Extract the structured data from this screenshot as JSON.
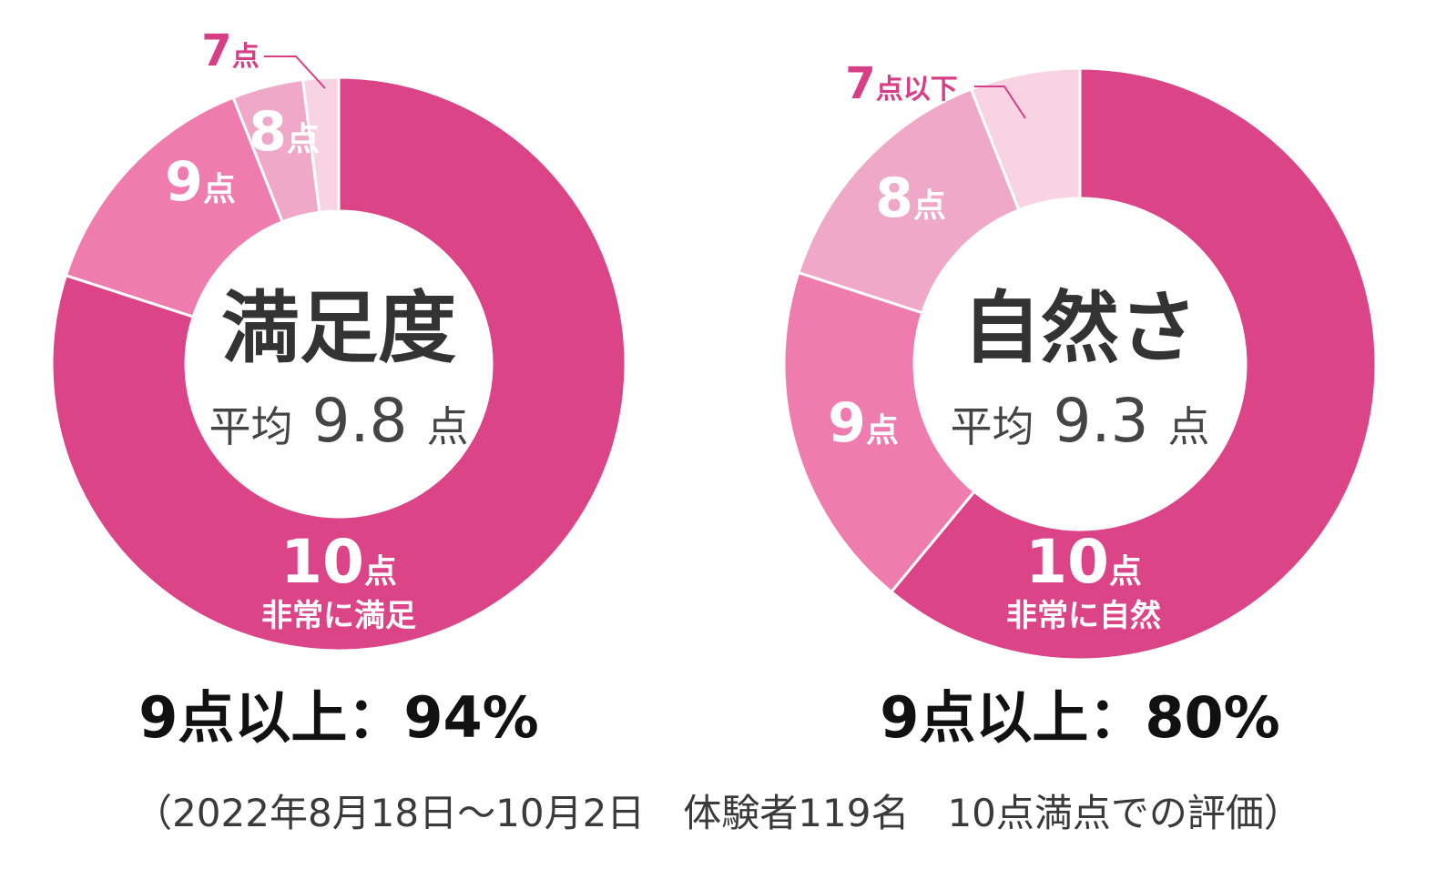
{
  "chart_data": [
    {
      "type": "pie",
      "center_title": "満足度",
      "center_sub_prefix": "平均",
      "center_sub_value": "9.8",
      "center_sub_suffix": "点",
      "categories": [
        "10点",
        "9点",
        "8点",
        "7点"
      ],
      "values": [
        80,
        14,
        4,
        2
      ],
      "colors": [
        "#dc4488",
        "#ee7cae",
        "#f0a8c8",
        "#f8d4e3"
      ],
      "slice_labels": [
        {
          "num": "10",
          "unit": "点",
          "sub": "非常に満足",
          "placement": "inside",
          "color": "#ffffff"
        },
        {
          "num": "9",
          "unit": "点",
          "placement": "inside",
          "color": "#ffffff"
        },
        {
          "num": "8",
          "unit": "点",
          "placement": "inside",
          "color": "#ffffff"
        },
        {
          "num": "7",
          "unit": "点",
          "placement": "outside",
          "color": "#d63f86"
        }
      ],
      "summary": "9点以上：94%"
    },
    {
      "type": "pie",
      "center_title": "自然さ",
      "center_sub_prefix": "平均",
      "center_sub_value": "9.3",
      "center_sub_suffix": "点",
      "categories": [
        "10点",
        "9点",
        "8点",
        "7点以下"
      ],
      "values": [
        61,
        19,
        14,
        6
      ],
      "colors": [
        "#dc4488",
        "#ee7cae",
        "#f0a8c8",
        "#f8d4e3"
      ],
      "slice_labels": [
        {
          "num": "10",
          "unit": "点",
          "sub": "非常に自然",
          "placement": "inside",
          "color": "#ffffff"
        },
        {
          "num": "9",
          "unit": "点",
          "placement": "inside",
          "color": "#ffffff"
        },
        {
          "num": "8",
          "unit": "点",
          "placement": "inside",
          "color": "#ffffff"
        },
        {
          "num": "7",
          "unit": "点以下",
          "placement": "outside",
          "color": "#d63f86"
        }
      ],
      "summary": "9点以上：80%"
    }
  ],
  "footnote": "（2022年8月18日～10月2日　体験者119名　10点満点での評価）"
}
